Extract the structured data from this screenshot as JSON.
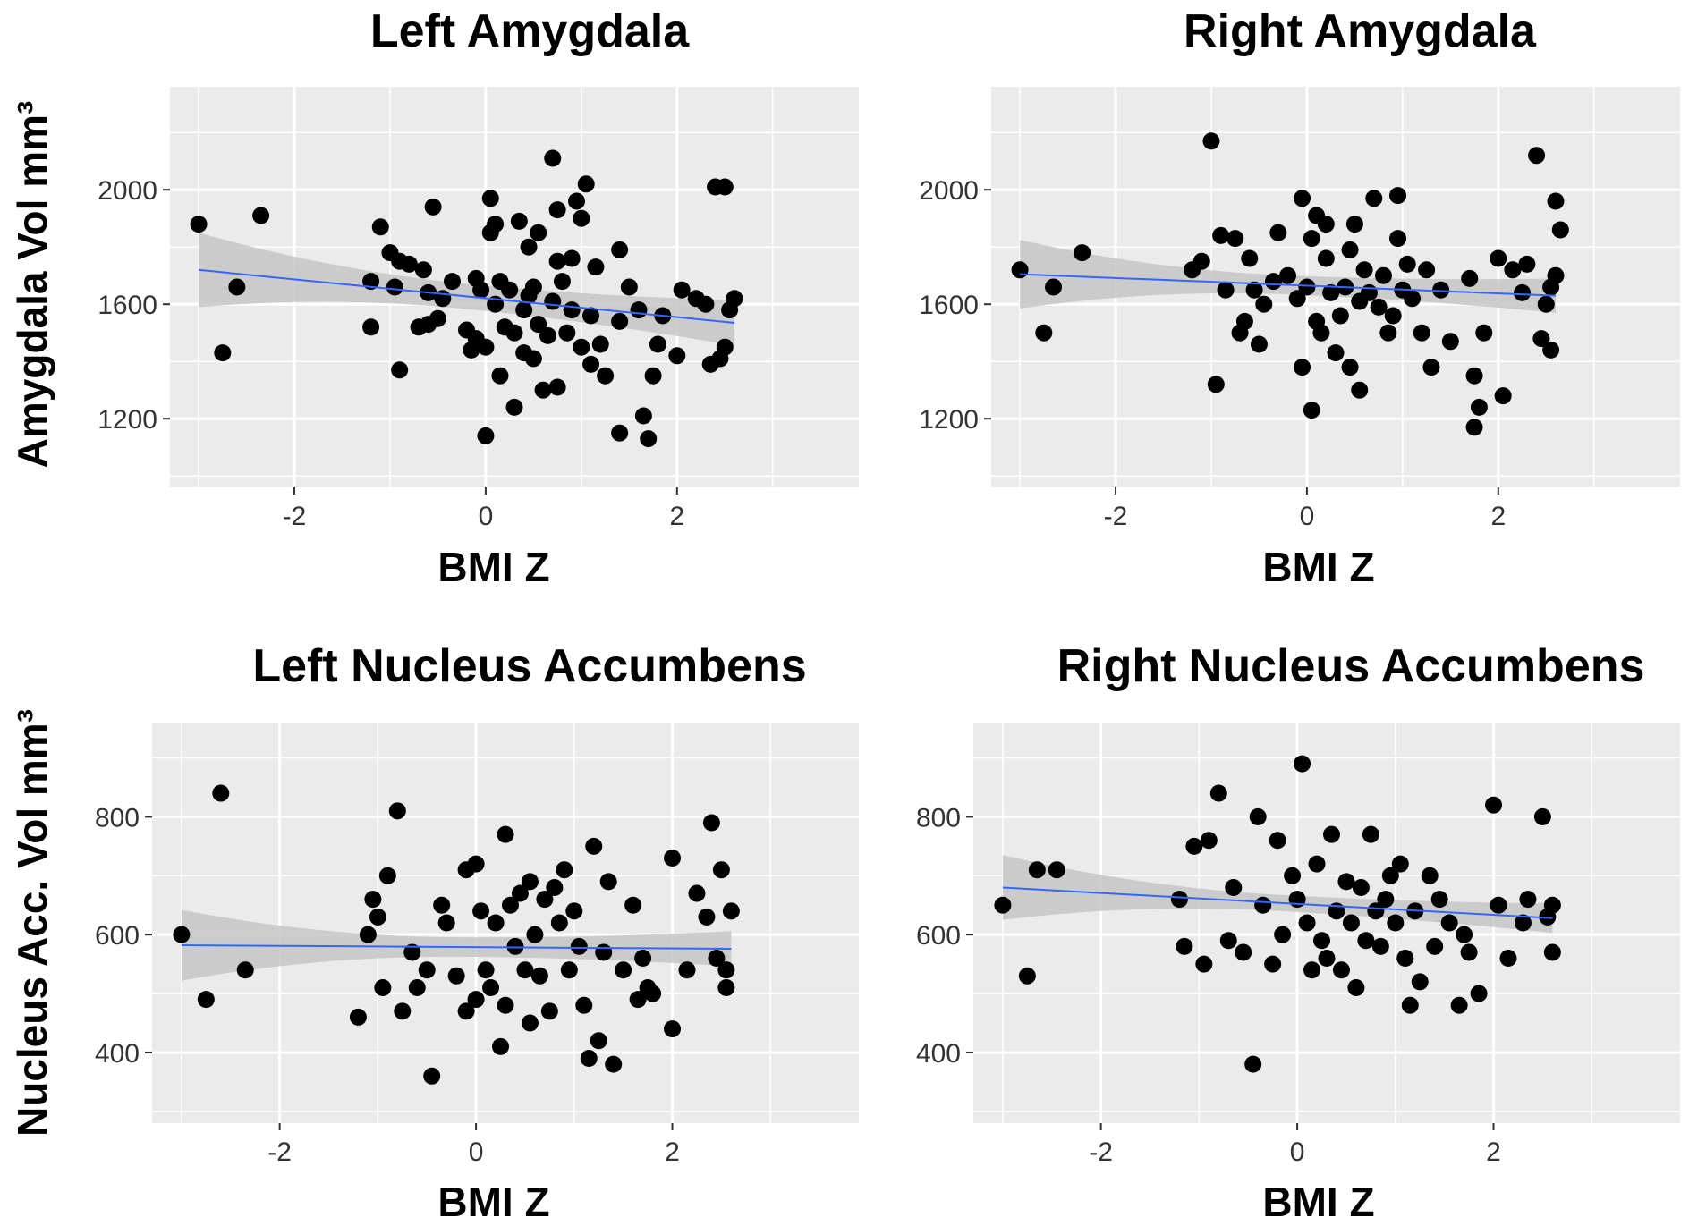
{
  "figure": {
    "ylabel_top": "Amygdala Vol mm³",
    "ylabel_bottom": "Nucleus Acc. Vol mm³"
  },
  "chart_data": [
    {
      "type": "scatter",
      "title": "Left Amygdala",
      "xlabel": "BMI Z",
      "ylabel": "Amygdala Vol mm³",
      "xlim": [
        -3.3,
        3.9
      ],
      "ylim": [
        960,
        2360
      ],
      "xticks": [
        -2,
        0,
        2
      ],
      "yticks": [
        1200,
        1600,
        2000
      ],
      "grid": true,
      "points": [
        [
          -3.0,
          1880
        ],
        [
          -2.75,
          1430
        ],
        [
          -2.6,
          1660
        ],
        [
          -2.35,
          1910
        ],
        [
          -1.2,
          1520
        ],
        [
          -1.2,
          1680
        ],
        [
          -1.1,
          1870
        ],
        [
          -1.0,
          1780
        ],
        [
          -0.95,
          1660
        ],
        [
          -0.9,
          1370
        ],
        [
          -0.9,
          1750
        ],
        [
          -0.8,
          1740
        ],
        [
          -0.7,
          1520
        ],
        [
          -0.65,
          1720
        ],
        [
          -0.6,
          1640
        ],
        [
          -0.6,
          1530
        ],
        [
          -0.55,
          1940
        ],
        [
          -0.5,
          1550
        ],
        [
          -0.45,
          1620
        ],
        [
          -0.35,
          1680
        ],
        [
          -0.2,
          1510
        ],
        [
          -0.15,
          1440
        ],
        [
          -0.1,
          1690
        ],
        [
          -0.1,
          1480
        ],
        [
          -0.05,
          1650
        ],
        [
          0.0,
          1140
        ],
        [
          0.0,
          1450
        ],
        [
          0.05,
          1850
        ],
        [
          0.05,
          1970
        ],
        [
          0.1,
          1600
        ],
        [
          0.1,
          1880
        ],
        [
          0.15,
          1680
        ],
        [
          0.15,
          1350
        ],
        [
          0.2,
          1520
        ],
        [
          0.25,
          1650
        ],
        [
          0.3,
          1240
        ],
        [
          0.3,
          1500
        ],
        [
          0.35,
          1890
        ],
        [
          0.4,
          1430
        ],
        [
          0.4,
          1580
        ],
        [
          0.45,
          1800
        ],
        [
          0.45,
          1630
        ],
        [
          0.5,
          1660
        ],
        [
          0.5,
          1410
        ],
        [
          0.55,
          1850
        ],
        [
          0.55,
          1530
        ],
        [
          0.6,
          1300
        ],
        [
          0.65,
          1490
        ],
        [
          0.7,
          2110
        ],
        [
          0.7,
          1610
        ],
        [
          0.75,
          1750
        ],
        [
          0.75,
          1310
        ],
        [
          0.75,
          1930
        ],
        [
          0.8,
          1680
        ],
        [
          0.85,
          1500
        ],
        [
          0.9,
          1580
        ],
        [
          0.9,
          1760
        ],
        [
          0.95,
          1960
        ],
        [
          1.0,
          1900
        ],
        [
          1.0,
          1450
        ],
        [
          1.05,
          2020
        ],
        [
          1.1,
          1560
        ],
        [
          1.1,
          1390
        ],
        [
          1.15,
          1730
        ],
        [
          1.2,
          1460
        ],
        [
          1.25,
          1350
        ],
        [
          1.4,
          1790
        ],
        [
          1.4,
          1540
        ],
        [
          1.4,
          1150
        ],
        [
          1.5,
          1660
        ],
        [
          1.6,
          1580
        ],
        [
          1.65,
          1210
        ],
        [
          1.7,
          1130
        ],
        [
          1.75,
          1350
        ],
        [
          1.8,
          1460
        ],
        [
          1.85,
          1560
        ],
        [
          2.0,
          1420
        ],
        [
          2.05,
          1650
        ],
        [
          2.2,
          1620
        ],
        [
          2.3,
          1600
        ],
        [
          2.35,
          1390
        ],
        [
          2.4,
          2010
        ],
        [
          2.45,
          1410
        ],
        [
          2.5,
          1450
        ],
        [
          2.55,
          1580
        ],
        [
          2.6,
          1620
        ],
        [
          2.5,
          2010
        ]
      ],
      "trend": {
        "x": [
          -3.0,
          2.6
        ],
        "y": [
          1720,
          1535
        ]
      },
      "ci_halfwidth_ends": [
        130,
        80
      ]
    },
    {
      "type": "scatter",
      "title": "Right Amygdala",
      "xlabel": "BMI Z",
      "ylabel": "",
      "xlim": [
        -3.3,
        3.9
      ],
      "ylim": [
        960,
        2360
      ],
      "xticks": [
        -2,
        0,
        2
      ],
      "yticks": [
        1200,
        1600,
        2000
      ],
      "grid": true,
      "points": [
        [
          -3.0,
          1720
        ],
        [
          -2.75,
          1500
        ],
        [
          -2.65,
          1660
        ],
        [
          -2.35,
          1780
        ],
        [
          -1.2,
          1720
        ],
        [
          -1.1,
          1750
        ],
        [
          -1.0,
          2170
        ],
        [
          -0.95,
          1320
        ],
        [
          -0.9,
          1840
        ],
        [
          -0.85,
          1650
        ],
        [
          -0.75,
          1830
        ],
        [
          -0.7,
          1500
        ],
        [
          -0.65,
          1540
        ],
        [
          -0.6,
          1760
        ],
        [
          -0.55,
          1650
        ],
        [
          -0.5,
          1460
        ],
        [
          -0.45,
          1600
        ],
        [
          -0.35,
          1680
        ],
        [
          -0.3,
          1850
        ],
        [
          -0.2,
          1700
        ],
        [
          -0.1,
          1620
        ],
        [
          -0.05,
          1970
        ],
        [
          -0.05,
          1380
        ],
        [
          0.0,
          1660
        ],
        [
          0.05,
          1230
        ],
        [
          0.05,
          1830
        ],
        [
          0.1,
          1910
        ],
        [
          0.1,
          1540
        ],
        [
          0.15,
          1500
        ],
        [
          0.2,
          1760
        ],
        [
          0.2,
          1880
        ],
        [
          0.25,
          1640
        ],
        [
          0.3,
          1430
        ],
        [
          0.35,
          1560
        ],
        [
          0.4,
          1660
        ],
        [
          0.45,
          1380
        ],
        [
          0.45,
          1790
        ],
        [
          0.5,
          1880
        ],
        [
          0.55,
          1610
        ],
        [
          0.55,
          1300
        ],
        [
          0.6,
          1720
        ],
        [
          0.65,
          1640
        ],
        [
          0.7,
          1970
        ],
        [
          0.75,
          1590
        ],
        [
          0.8,
          1700
        ],
        [
          0.85,
          1500
        ],
        [
          0.9,
          1560
        ],
        [
          0.95,
          1980
        ],
        [
          0.95,
          1830
        ],
        [
          1.0,
          1650
        ],
        [
          1.05,
          1740
        ],
        [
          1.1,
          1620
        ],
        [
          1.2,
          1500
        ],
        [
          1.25,
          1720
        ],
        [
          1.3,
          1380
        ],
        [
          1.4,
          1650
        ],
        [
          1.5,
          1470
        ],
        [
          1.7,
          1690
        ],
        [
          1.75,
          1350
        ],
        [
          1.8,
          1240
        ],
        [
          1.75,
          1170
        ],
        [
          1.85,
          1500
        ],
        [
          2.0,
          1760
        ],
        [
          2.05,
          1280
        ],
        [
          2.15,
          1720
        ],
        [
          2.25,
          1640
        ],
        [
          2.3,
          1740
        ],
        [
          2.4,
          2120
        ],
        [
          2.45,
          1480
        ],
        [
          2.5,
          1600
        ],
        [
          2.55,
          1660
        ],
        [
          2.55,
          1440
        ],
        [
          2.6,
          1700
        ],
        [
          2.6,
          1960
        ],
        [
          2.65,
          1860
        ]
      ],
      "trend": {
        "x": [
          -3.0,
          2.6
        ],
        "y": [
          1705,
          1630
        ]
      },
      "ci_halfwidth_ends": [
        120,
        60
      ]
    },
    {
      "type": "scatter",
      "title": "Left Nucleus Accumbens",
      "xlabel": "BMI Z",
      "ylabel": "Nucleus Acc. Vol mm³",
      "xlim": [
        -3.3,
        3.9
      ],
      "ylim": [
        280,
        960
      ],
      "xticks": [
        -2,
        0,
        2
      ],
      "yticks": [
        400,
        600,
        800
      ],
      "grid": true,
      "points": [
        [
          -3.0,
          600
        ],
        [
          -2.75,
          490
        ],
        [
          -2.6,
          840
        ],
        [
          -2.35,
          540
        ],
        [
          -1.2,
          460
        ],
        [
          -1.1,
          600
        ],
        [
          -1.05,
          660
        ],
        [
          -1.0,
          630
        ],
        [
          -0.95,
          510
        ],
        [
          -0.9,
          700
        ],
        [
          -0.8,
          810
        ],
        [
          -0.75,
          470
        ],
        [
          -0.65,
          570
        ],
        [
          -0.6,
          510
        ],
        [
          -0.5,
          540
        ],
        [
          -0.45,
          360
        ],
        [
          -0.35,
          650
        ],
        [
          -0.3,
          620
        ],
        [
          -0.2,
          530
        ],
        [
          -0.1,
          710
        ],
        [
          -0.1,
          470
        ],
        [
          0.0,
          720
        ],
        [
          0.0,
          490
        ],
        [
          0.05,
          640
        ],
        [
          0.1,
          540
        ],
        [
          0.15,
          510
        ],
        [
          0.2,
          620
        ],
        [
          0.25,
          410
        ],
        [
          0.3,
          770
        ],
        [
          0.3,
          480
        ],
        [
          0.35,
          650
        ],
        [
          0.4,
          580
        ],
        [
          0.45,
          670
        ],
        [
          0.5,
          540
        ],
        [
          0.55,
          690
        ],
        [
          0.55,
          450
        ],
        [
          0.6,
          600
        ],
        [
          0.65,
          530
        ],
        [
          0.7,
          660
        ],
        [
          0.75,
          470
        ],
        [
          0.8,
          680
        ],
        [
          0.85,
          620
        ],
        [
          0.9,
          710
        ],
        [
          0.95,
          540
        ],
        [
          1.0,
          640
        ],
        [
          1.05,
          580
        ],
        [
          1.1,
          480
        ],
        [
          1.15,
          390
        ],
        [
          1.2,
          750
        ],
        [
          1.25,
          420
        ],
        [
          1.3,
          570
        ],
        [
          1.35,
          690
        ],
        [
          1.4,
          380
        ],
        [
          1.5,
          540
        ],
        [
          1.6,
          650
        ],
        [
          1.65,
          490
        ],
        [
          1.7,
          560
        ],
        [
          1.75,
          510
        ],
        [
          1.8,
          500
        ],
        [
          2.0,
          730
        ],
        [
          2.0,
          440
        ],
        [
          2.15,
          540
        ],
        [
          2.25,
          670
        ],
        [
          2.35,
          630
        ],
        [
          2.4,
          790
        ],
        [
          2.45,
          560
        ],
        [
          2.5,
          710
        ],
        [
          2.55,
          510
        ],
        [
          2.55,
          540
        ],
        [
          2.6,
          640
        ]
      ],
      "trend": {
        "x": [
          -3.0,
          2.6
        ],
        "y": [
          582,
          576
        ]
      },
      "ci_halfwidth_ends": [
        60,
        30
      ]
    },
    {
      "type": "scatter",
      "title": "Right Nucleus Accumbens",
      "xlabel": "BMI Z",
      "ylabel": "",
      "xlim": [
        -3.3,
        3.9
      ],
      "ylim": [
        280,
        960
      ],
      "xticks": [
        -2,
        0,
        2
      ],
      "yticks": [
        400,
        600,
        800
      ],
      "grid": true,
      "points": [
        [
          -3.0,
          650
        ],
        [
          -2.75,
          530
        ],
        [
          -2.65,
          710
        ],
        [
          -2.45,
          710
        ],
        [
          -1.2,
          660
        ],
        [
          -1.15,
          580
        ],
        [
          -1.05,
          750
        ],
        [
          -0.95,
          550
        ],
        [
          -0.9,
          760
        ],
        [
          -0.8,
          840
        ],
        [
          -0.7,
          590
        ],
        [
          -0.65,
          680
        ],
        [
          -0.55,
          570
        ],
        [
          -0.45,
          380
        ],
        [
          -0.4,
          800
        ],
        [
          -0.35,
          650
        ],
        [
          -0.25,
          550
        ],
        [
          -0.2,
          760
        ],
        [
          -0.15,
          600
        ],
        [
          -0.05,
          700
        ],
        [
          0.0,
          660
        ],
        [
          0.05,
          890
        ],
        [
          0.1,
          620
        ],
        [
          0.15,
          540
        ],
        [
          0.2,
          720
        ],
        [
          0.25,
          590
        ],
        [
          0.3,
          560
        ],
        [
          0.35,
          770
        ],
        [
          0.4,
          640
        ],
        [
          0.45,
          540
        ],
        [
          0.5,
          690
        ],
        [
          0.55,
          620
        ],
        [
          0.6,
          510
        ],
        [
          0.65,
          680
        ],
        [
          0.7,
          590
        ],
        [
          0.75,
          770
        ],
        [
          0.8,
          640
        ],
        [
          0.85,
          580
        ],
        [
          0.9,
          660
        ],
        [
          0.95,
          700
        ],
        [
          1.0,
          620
        ],
        [
          1.05,
          720
        ],
        [
          1.1,
          560
        ],
        [
          1.15,
          480
        ],
        [
          1.2,
          640
        ],
        [
          1.25,
          520
        ],
        [
          1.35,
          700
        ],
        [
          1.4,
          580
        ],
        [
          1.45,
          660
        ],
        [
          1.55,
          620
        ],
        [
          1.65,
          480
        ],
        [
          1.7,
          600
        ],
        [
          1.75,
          570
        ],
        [
          1.85,
          500
        ],
        [
          2.0,
          820
        ],
        [
          2.05,
          650
        ],
        [
          2.15,
          560
        ],
        [
          2.3,
          620
        ],
        [
          2.35,
          660
        ],
        [
          2.5,
          800
        ],
        [
          2.55,
          630
        ],
        [
          2.6,
          650
        ],
        [
          2.6,
          570
        ]
      ],
      "trend": {
        "x": [
          -3.0,
          2.6
        ],
        "y": [
          680,
          628
        ]
      },
      "ci_halfwidth_ends": [
        55,
        25
      ]
    }
  ]
}
